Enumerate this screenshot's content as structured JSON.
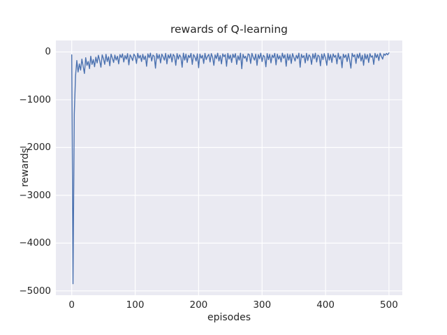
{
  "figure": {
    "title": "rewards of Q-learning",
    "xlabel": "episodes",
    "ylabel": "rewards"
  },
  "chart_data": {
    "type": "line",
    "title": "rewards of Q-learning",
    "xlabel": "episodes",
    "ylabel": "rewards",
    "legend": null,
    "grid": true,
    "style": "seaborn-darkgrid",
    "line_color": "#4c72b0",
    "axes_bg_color": "#eaeaf2",
    "grid_color": "#ffffff",
    "text_color": "#262626",
    "xlim": [
      -25,
      521
    ],
    "ylim": [
      -5090,
      240
    ],
    "xticks": [
      0,
      100,
      200,
      300,
      400,
      500
    ],
    "yticks": [
      0,
      -1000,
      -2000,
      -3000,
      -4000,
      -5000
    ],
    "xtick_labels": [
      "0",
      "100",
      "200",
      "300",
      "400",
      "500"
    ],
    "ytick_labels": [
      "0",
      "−1000",
      "−2000",
      "−3000",
      "−4000",
      "−5000"
    ],
    "x_start": 0,
    "x_step": 2,
    "values": [
      -60,
      -4850,
      -1300,
      -500,
      -180,
      -420,
      -250,
      -380,
      -150,
      -300,
      -450,
      -120,
      -280,
      -200,
      -350,
      -90,
      -260,
      -160,
      -310,
      -110,
      -230,
      -70,
      -180,
      -320,
      -60,
      -140,
      -260,
      -50,
      -200,
      -100,
      -290,
      -45,
      -130,
      -220,
      -65,
      -170,
      -90,
      -250,
      -55,
      -120,
      -40,
      -210,
      -75,
      -150,
      -35,
      -270,
      -60,
      -110,
      -180,
      -45,
      -90,
      -240,
      -30,
      -130,
      -70,
      -200,
      -50,
      -160,
      -85,
      -300,
      -40,
      -120,
      -25,
      -190,
      -65,
      -90,
      -340,
      -35,
      -140,
      -55,
      -230,
      -45,
      -100,
      -170,
      -30,
      -250,
      -60,
      -130,
      -40,
      -210,
      -50,
      -90,
      -280,
      -35,
      -150,
      -60,
      -110,
      -320,
      -25,
      -170,
      -45,
      -220,
      -70,
      -120,
      -30,
      -260,
      -55,
      -100,
      -190,
      -40,
      -330,
      -45,
      -130,
      -70,
      -240,
      -30,
      -160,
      -90,
      -50,
      -210,
      -35,
      -110,
      -280,
      -60,
      -140,
      -25,
      -190,
      -75,
      -250,
      -40,
      -100,
      -55,
      -300,
      -30,
      -150,
      -65,
      -220,
      -45,
      -120,
      -35,
      -260,
      -80,
      -170,
      -25,
      -350,
      -50,
      -130,
      -90,
      -200,
      -40,
      -60,
      -240,
      -30,
      -110,
      -170,
      -45,
      -280,
      -55,
      -140,
      -25,
      -200,
      -70,
      -100,
      -310,
      -35,
      -160,
      -50,
      -230,
      -65,
      -120,
      -30,
      -270,
      -45,
      -150,
      -80,
      -210,
      -25,
      -130,
      -60,
      -300,
      -40,
      -170,
      -55,
      -240,
      -35,
      -110,
      -190,
      -70,
      -140,
      -25,
      -320,
      -50,
      -120,
      -75,
      -230,
      -30,
      -180,
      -60,
      -100,
      -260,
      -40,
      -140,
      -25,
      -210,
      -65,
      -90,
      -290,
      -45,
      -160,
      -35,
      -130,
      -280,
      -30,
      -170,
      -55,
      -220,
      -40,
      -110,
      -70,
      -250,
      -25,
      -150,
      -90,
      -330,
      -45,
      -120,
      -60,
      -200,
      -35,
      -170,
      -340,
      -30,
      -100,
      -60,
      -240,
      -45,
      -130,
      -25,
      -190,
      -70,
      -280,
      -40,
      -150,
      -55,
      -220,
      -35,
      -110,
      -80,
      -260,
      -30,
      -120,
      -50,
      -180,
      -25,
      -90,
      -150,
      -40,
      -70,
      -30,
      -60,
      -20
    ]
  }
}
